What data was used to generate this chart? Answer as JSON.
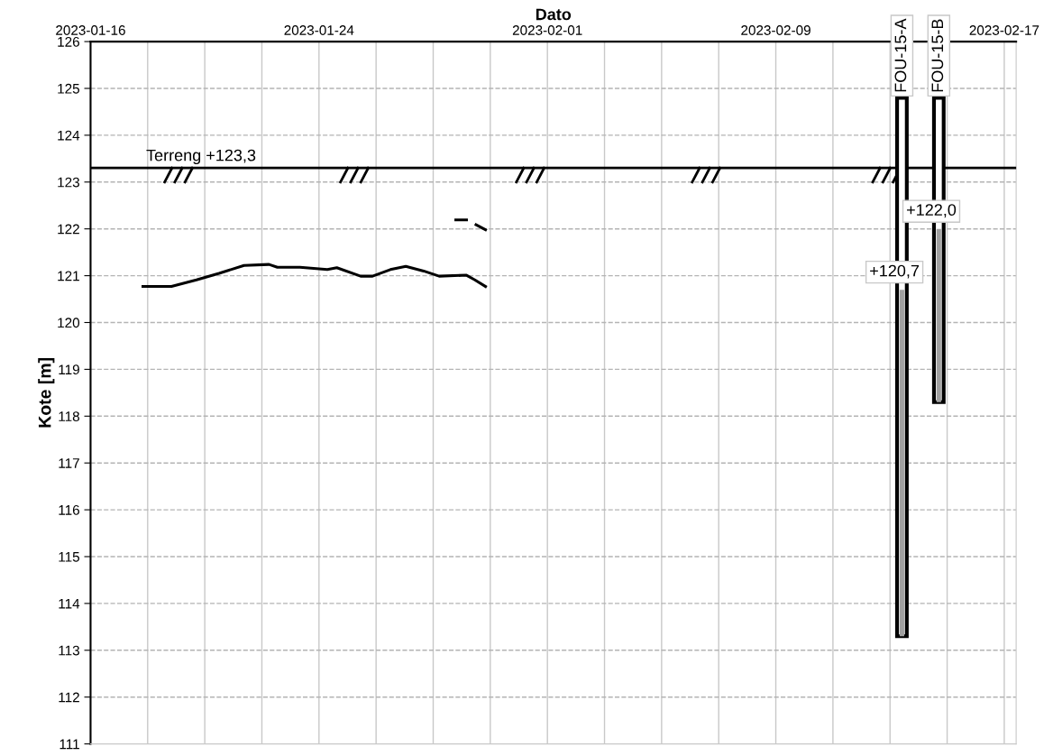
{
  "chart_data": {
    "type": "line",
    "xlabel": "Dato",
    "ylabel": "Kote [m]",
    "xlim": [
      "2023-01-16",
      "2023-02-17T10:00"
    ],
    "xticks": [
      {
        "value": "2023-01-16",
        "label": "2023-01-16"
      },
      {
        "value": "2023-01-18",
        "label": null
      },
      {
        "value": "2023-01-20",
        "label": null
      },
      {
        "value": "2023-01-22",
        "label": null
      },
      {
        "value": "2023-01-24",
        "label": "2023-01-24"
      },
      {
        "value": "2023-01-26",
        "label": null
      },
      {
        "value": "2023-01-28",
        "label": null
      },
      {
        "value": "2023-01-30",
        "label": null
      },
      {
        "value": "2023-02-01",
        "label": "2023-02-01"
      },
      {
        "value": "2023-02-03",
        "label": null
      },
      {
        "value": "2023-02-05",
        "label": null
      },
      {
        "value": "2023-02-07",
        "label": null
      },
      {
        "value": "2023-02-09",
        "label": "2023-02-09"
      },
      {
        "value": "2023-02-11",
        "label": null
      },
      {
        "value": "2023-02-13",
        "label": null
      },
      {
        "value": "2023-02-15",
        "label": null
      },
      {
        "value": "2023-02-17",
        "label": "2023-02-17"
      }
    ],
    "ylim": [
      111,
      126
    ],
    "yticks": [
      111,
      112,
      113,
      114,
      115,
      116,
      117,
      118,
      119,
      120,
      121,
      122,
      123,
      124,
      125,
      126
    ],
    "grid": true,
    "marker": "none",
    "line_style": "solid",
    "series": [
      {
        "color": "#000000",
        "x": [
          "2023-01-17T20:00",
          "2023-01-18T20:00",
          "2023-01-19T17:00",
          "2023-01-20T12:00",
          "2023-01-21T09:00",
          "2023-01-22T06:00",
          "2023-01-22T13:00",
          "2023-01-23T08:00",
          "2023-01-24T07:00",
          "2023-01-24T15:00",
          "2023-01-25T11:00",
          "2023-01-25T21:00",
          "2023-01-26T12:00",
          "2023-01-27T01:00",
          "2023-01-27T16:00",
          "2023-01-28T05:00",
          "2023-01-29T04:00",
          "2023-01-29T11:00",
          "2023-01-29T20:00"
        ],
        "values": [
          120.77,
          120.77,
          120.91,
          121.05,
          121.22,
          121.24,
          121.18,
          121.18,
          121.13,
          121.17,
          120.99,
          120.99,
          121.13,
          121.2,
          121.1,
          120.99,
          121.01,
          120.91,
          120.77
        ]
      },
      {
        "color": "#000000",
        "x": [
          "2023-01-28T19:00",
          "2023-01-29T04:00",
          "2023-01-29T08:00",
          "2023-01-29T12:00",
          "2023-01-29T20:00"
        ],
        "values": [
          122.19,
          122.19,
          null,
          122.09,
          121.98
        ]
      },
      {
        "type": "bar",
        "color": "#ffffff",
        "x": [
          "2023-02-13T10:00",
          "2023-02-14T17:00"
        ],
        "base": [
          113.3,
          118.3
        ],
        "values": [
          11.5,
          6.5
        ]
      },
      {
        "type": "bar",
        "color": "#a0a0a0",
        "x": [
          "2023-02-13T10:00",
          "2023-02-14T17:00"
        ],
        "base": [
          113.3,
          118.3
        ],
        "values": [
          7.4,
          3.7
        ],
        "value_labels": [
          "+120,7",
          "+122,0"
        ]
      }
    ],
    "ref_lines": [
      {
        "axis": "y",
        "value": 123.3,
        "label": "Terreng +123,3",
        "color": "#000000"
      }
    ],
    "annotations": [
      {
        "text": "FOU-15-A",
        "x": "2023-02-13T10:00",
        "y": 124.8
      },
      {
        "text": "FOU-15-B",
        "x": "2023-02-14T17:00",
        "y": 124.8
      }
    ]
  }
}
